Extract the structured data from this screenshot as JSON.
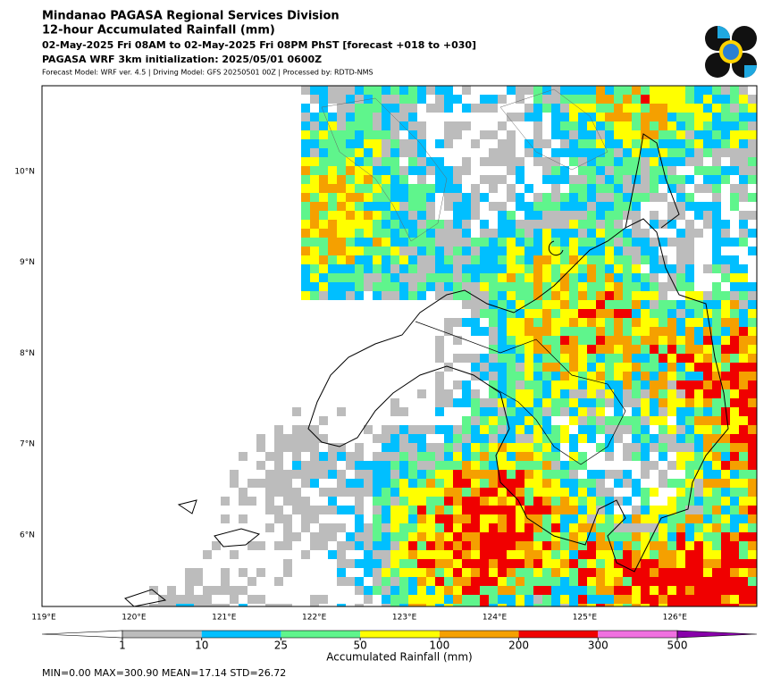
{
  "header": {
    "lines": [
      "Mindanao PAGASA Regional Services Division",
      "12-hour Accumulated Rainfall (mm)",
      "02-May-2025 Fri 08AM to 02-May-2025 Fri 08PM PhST [forecast +018 to +030]",
      "PAGASA WRF 3km initialization: 2025/05/01 0600Z",
      "Forecast Model: WRF ver. 4.5 | Driving Model: GFS 20250501 00Z | Processed by: RDTD-NMS"
    ]
  },
  "map": {
    "lat_labels": [
      "10°N",
      "9°N",
      "8°N",
      "7°N",
      "6°N"
    ],
    "lon_labels": [
      "119°E",
      "120°E",
      "121°E",
      "122°E",
      "123°E",
      "124°E",
      "125°E",
      "126°E"
    ]
  },
  "colorbar": {
    "levels": [
      1,
      10,
      25,
      50,
      100,
      200,
      300,
      500
    ],
    "colors": [
      "#ffffff",
      "#bcbcbc",
      "#00bfff",
      "#5ff58c",
      "#ffff00",
      "#f5a000",
      "#f00000",
      "#f070e0",
      "#8800aa"
    ],
    "label": "Accumulated Rainfall (mm)"
  },
  "stats": "MIN=0.00   MAX=300.90   MEAN=17.14   STD=26.72"
}
